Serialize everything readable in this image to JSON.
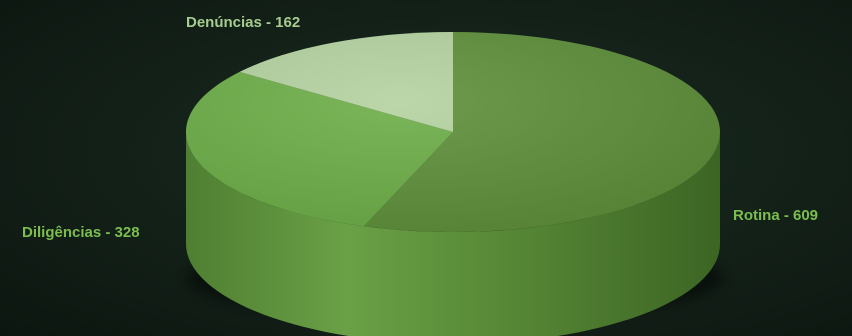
{
  "chart_data": {
    "type": "pie",
    "title": "",
    "slices": [
      {
        "label": "Rotina",
        "value": 609,
        "color": "#5e8f3a"
      },
      {
        "label": "Diligências",
        "value": 328,
        "color": "#6cae47"
      },
      {
        "label": "Denúncias",
        "value": 162,
        "color": "#b4d3a1"
      }
    ],
    "data_labels": {
      "rotina": "Rotina - 609",
      "diligencias": "Diligências - 328",
      "denuncias": "Denúncias - 162"
    },
    "style": "3d",
    "legend": "none"
  }
}
